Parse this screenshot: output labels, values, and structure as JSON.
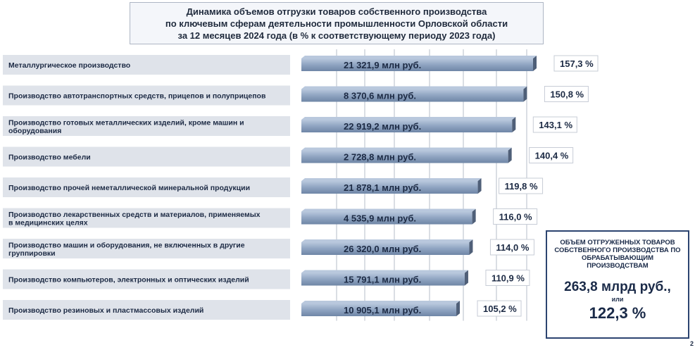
{
  "title": {
    "line1": "Динамика объемов отгрузки товаров собственного производства",
    "line2": "по ключевым сферам деятельности промышленности Орловской области",
    "line3": "за 12 месяцев 2024 года (в % к соответствующему периоду 2023 года)"
  },
  "chart_data": {
    "type": "bar",
    "orientation": "horizontal",
    "title": "Динамика объемов отгрузки товаров собственного производства по ключевым сферам деятельности промышленности Орловской области за 12 месяцев 2024 года (в % к соответствующему периоду 2023 года)",
    "categories": [
      "Металлургическое производство",
      "Производство автотранспортных средств, прицепов и полуприцепов",
      "Производство готовых металлических изделий, кроме машин и оборудования",
      "Производство мебели",
      "Производство прочей неметаллической минеральной продукции",
      "Производство лекарственных средств и материалов, применяемых в медицинских целях",
      "Производство машин и оборудования, не включенных в другие группировки",
      "Производство компьютеров, электронных и оптических изделий",
      "Производство резиновых и пластмассовых изделий"
    ],
    "category_lines": [
      [
        "Металлургическое производство"
      ],
      [
        "Производство автотранспортных средств, прицепов и полуприцепов"
      ],
      [
        "Производство готовых металлических изделий, кроме машин и",
        "оборудования"
      ],
      [
        "Производство мебели"
      ],
      [
        "Производство прочей неметаллической минеральной продукции"
      ],
      [
        "Производство лекарственных средств и материалов, применяемых",
        "в медицинских целях"
      ],
      [
        "Производство машин и оборудования, не включенных в другие",
        "группировки"
      ],
      [
        "Производство компьютеров, электронных и оптических изделий"
      ],
      [
        "Производство резиновых и пластмассовых изделий"
      ]
    ],
    "values": [
      157.3,
      150.8,
      143.1,
      140.4,
      119.8,
      116.0,
      114.0,
      110.9,
      105.2
    ],
    "value_labels": [
      "157,3 %",
      "150,8 %",
      "143,1 %",
      "140,4 %",
      "119,8 %",
      "116,0 %",
      "114,0 %",
      "110,9 %",
      "105,2 %"
    ],
    "volume_labels": [
      "21 321,9 млн руб.",
      "8 370,6 млн руб.",
      "22 919,2 млн руб.",
      "2 728,8 млн руб.",
      "21 878,1 млн руб.",
      "4 535,9 млн руб.",
      "26 320,0 млн руб.",
      "15 791,1 млн руб.",
      "10 905,1 млн руб."
    ],
    "xlim": [
      0,
      157.3
    ],
    "grid": true,
    "colors": {
      "bar_top": "#b9c8dd",
      "bar_mid": "#8fa4c1",
      "bar_bottom": "#6f86a6",
      "bar_side": "#4f5f78"
    }
  },
  "summary": {
    "caption": "ОБЪЕМ ОТГРУЖЕННЫХ ТОВАРОВ СОБСТВЕННОГО ПРОИЗВОДСТВА ПО ОБРАБАТЫВАЮЩИМ ПРОИЗВОДСТВАМ",
    "value": "263,8 млрд руб.,",
    "or": "или",
    "percent": "122,3 %"
  },
  "page_number": "2"
}
